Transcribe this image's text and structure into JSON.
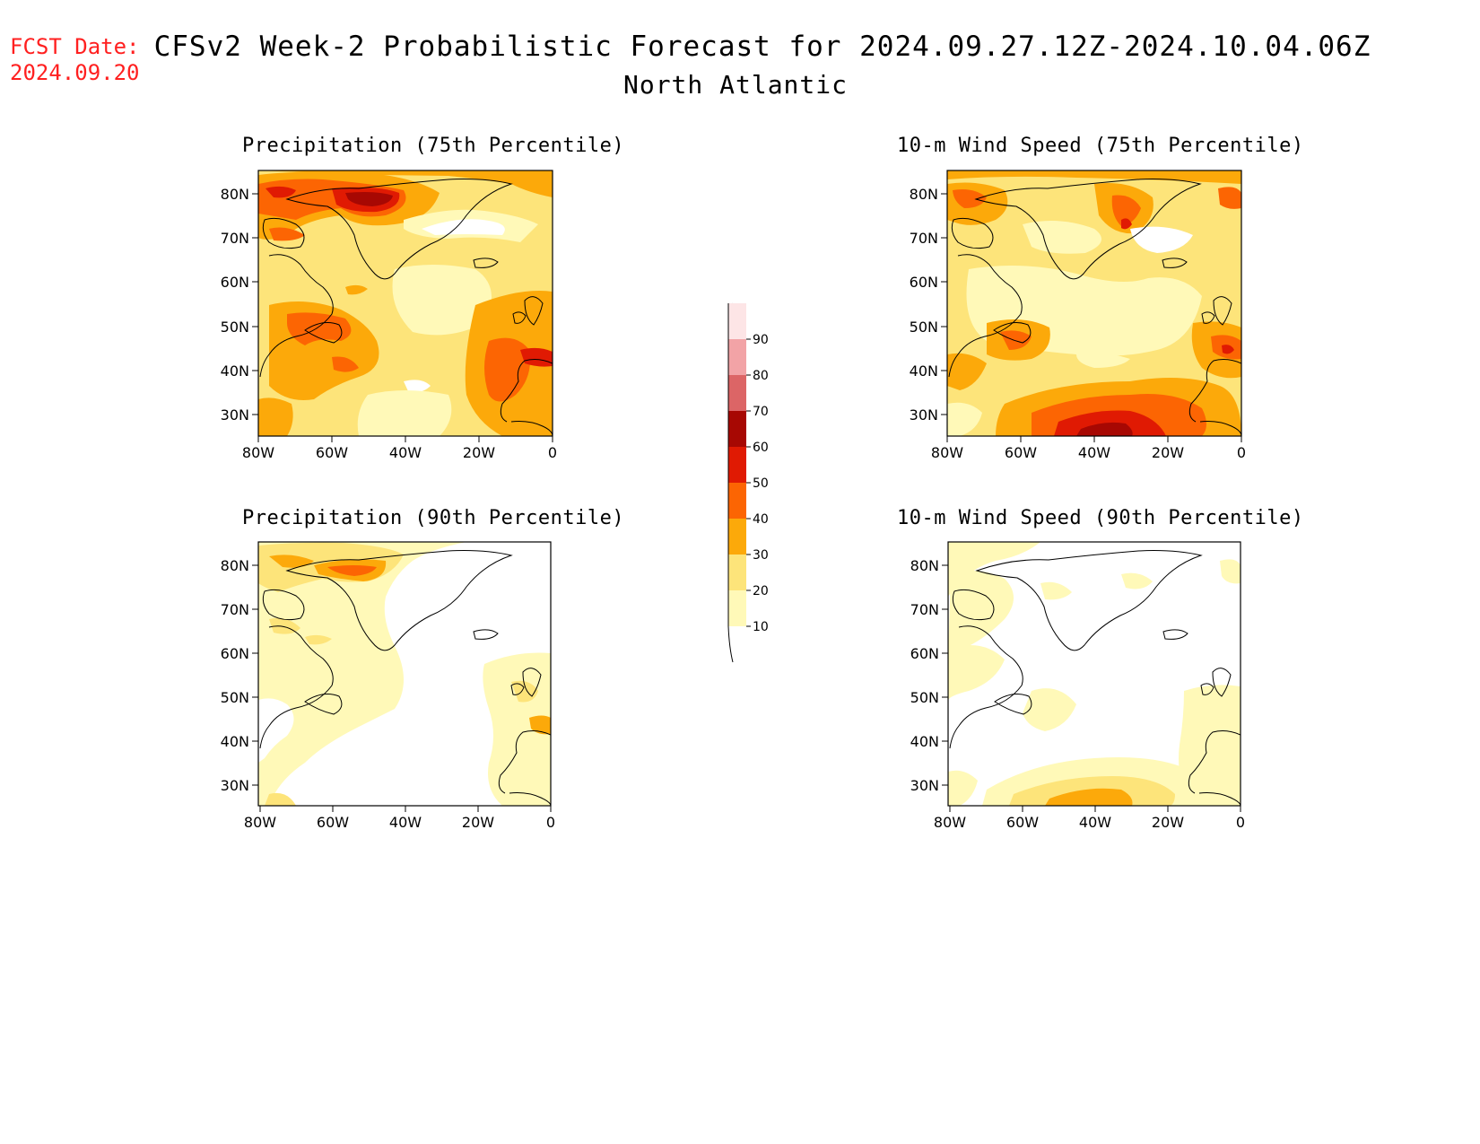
{
  "header": {
    "fcst_label": "FCST Date:",
    "fcst_date": "2024.09.20",
    "title": "CFSv2 Week-2 Probabilistic Forecast for 2024.09.27.12Z-2024.10.04.06Z",
    "subtitle": "North Atlantic"
  },
  "panels": [
    {
      "id": "precip75",
      "title": "Precipitation (75th Percentile)"
    },
    {
      "id": "wind75",
      "title": "10-m Wind Speed (75th Percentile)"
    },
    {
      "id": "precip90",
      "title": "Precipitation (90th Percentile)"
    },
    {
      "id": "wind90",
      "title": "10-m Wind Speed (90th Percentile)"
    }
  ],
  "axes": {
    "lat_labels": [
      "80N",
      "70N",
      "60N",
      "50N",
      "40N",
      "30N"
    ],
    "lon_labels": [
      "80W",
      "60W",
      "40W",
      "20W",
      "0"
    ]
  },
  "colorbar": {
    "levels": [
      "10",
      "20",
      "30",
      "40",
      "50",
      "60",
      "70",
      "80",
      "90"
    ],
    "colors": [
      "#fff9b8",
      "#fde47a",
      "#fca90a",
      "#fc6503",
      "#e01a03",
      "#a70803",
      "#dc6566",
      "#f2a3a6",
      "#fde5e6"
    ]
  }
}
